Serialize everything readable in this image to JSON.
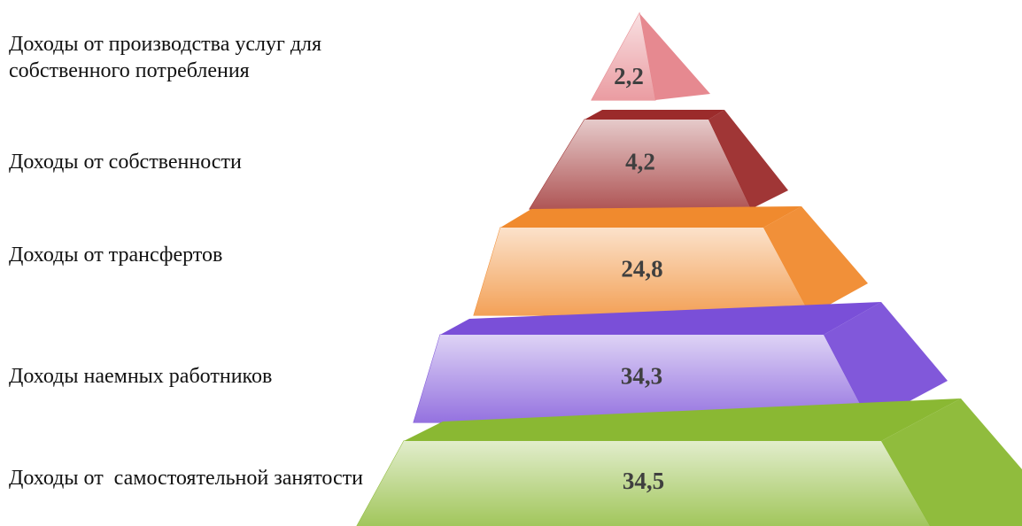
{
  "chart_data": {
    "type": "pyramid",
    "categories": [
      "Доходы от производства услуг для собственного потребления",
      "Доходы от собственности",
      "Доходы от трансфертов",
      "Доходы наемных работников",
      "Доходы от  самостоятельной занятости"
    ],
    "values": [
      2.2,
      4.2,
      24.8,
      34.3,
      34.5
    ],
    "value_labels": [
      "2,2",
      "4,2",
      "24,8",
      "34,3",
      "34,5"
    ],
    "colors": [
      "#e5838a",
      "#9b2b2b",
      "#f08a2e",
      "#7a4fd8",
      "#8ab833"
    ]
  }
}
